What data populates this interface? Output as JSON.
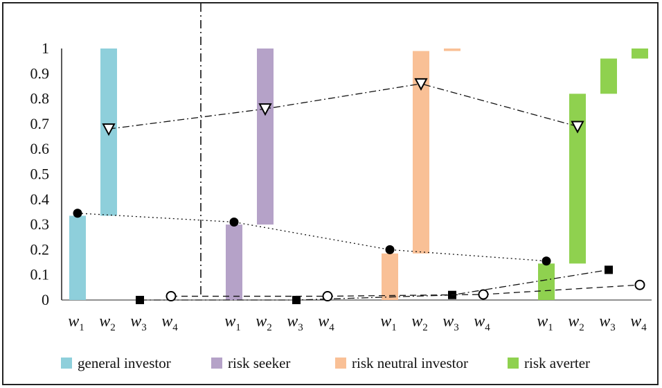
{
  "chart_data": {
    "type": "bar",
    "ylim": [
      0,
      1
    ],
    "yticks": [
      "0",
      "0.1",
      "0.2",
      "0.3",
      "0.4",
      "0.5",
      "0.6",
      "0.7",
      "0.8",
      "0.9",
      "1"
    ],
    "groups": [
      {
        "name": "general investor",
        "color": "#8ecfdb",
        "categories": [
          "w1",
          "w2",
          "w3",
          "w4"
        ],
        "bars": [
          {
            "low": 0,
            "high": 0.335
          },
          {
            "low": 0.335,
            "high": 1.0
          },
          {
            "low": 0,
            "high": 0
          },
          {
            "low": 0,
            "high": 0
          }
        ],
        "markers": {
          "w1": 0.345,
          "w2": 0.68,
          "w3": 0.0,
          "w4": 0.015
        }
      },
      {
        "name": "risk seeker",
        "color": "#b5a2c8",
        "categories": [
          "w1",
          "w2",
          "w3",
          "w4"
        ],
        "bars": [
          {
            "low": 0,
            "high": 0.3
          },
          {
            "low": 0.3,
            "high": 1.0
          },
          {
            "low": 0,
            "high": 0
          },
          {
            "low": 0,
            "high": 0
          }
        ],
        "markers": {
          "w1": 0.31,
          "w2": 0.76,
          "w3": 0.0,
          "w4": 0.015
        }
      },
      {
        "name": "risk neutral investor",
        "color": "#f9c096",
        "categories": [
          "w1",
          "w2",
          "w3",
          "w4"
        ],
        "bars": [
          {
            "low": 0,
            "high": 0.185
          },
          {
            "low": 0.185,
            "high": 0.99
          },
          {
            "low": 0.99,
            "high": 1.0
          },
          {
            "low": 0,
            "high": 0
          }
        ],
        "markers": {
          "w1": 0.2,
          "w2": 0.86,
          "w3": 0.02,
          "w4": 0.022
        }
      },
      {
        "name": "risk averter",
        "color": "#8fd14f",
        "categories": [
          "w1",
          "w2",
          "w3",
          "w4"
        ],
        "bars": [
          {
            "low": 0,
            "high": 0.145
          },
          {
            "low": 0.145,
            "high": 0.82
          },
          {
            "low": 0.82,
            "high": 0.96
          },
          {
            "low": 0.96,
            "high": 1.0
          }
        ],
        "markers": {
          "w1": 0.155,
          "w2": 0.69,
          "w3": 0.12,
          "w4": 0.06
        }
      }
    ],
    "marker_series": [
      {
        "weight": "w1",
        "symbol": "filled-circle",
        "line": "dotted"
      },
      {
        "weight": "w2",
        "symbol": "inverted-triangle",
        "line": "dash-dot"
      },
      {
        "weight": "w3",
        "symbol": "filled-square",
        "line": "dash-dot"
      },
      {
        "weight": "w4",
        "symbol": "open-circle",
        "line": "dashed"
      }
    ],
    "legend": [
      "general investor",
      "risk seeker",
      "risk neutral investor",
      "risk averter"
    ],
    "legend_position": "bottom",
    "grid": false
  }
}
